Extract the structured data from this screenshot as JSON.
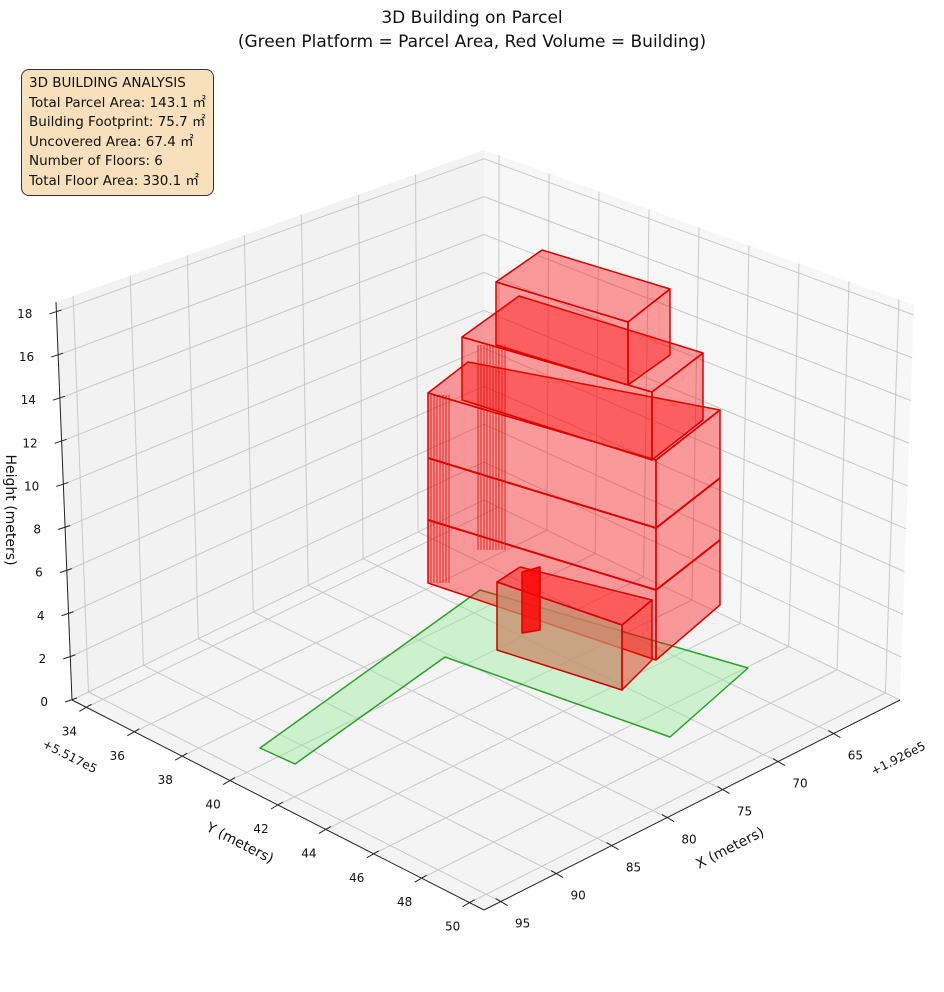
{
  "chart_data": {
    "type": "3d-polygons",
    "title": "3D Building on Parcel",
    "subtitle": "(Green Platform = Parcel Area, Red Volume = Building)",
    "xlabel": "X (meters)",
    "ylabel": "Y (meters)",
    "zlabel": "Height (meters)",
    "x_offset_label": "+1.926e5",
    "y_offset_label": "+5.517e5",
    "x_ticks": [
      "65",
      "70",
      "75",
      "80",
      "85",
      "90",
      "95"
    ],
    "y_ticks": [
      "34",
      "36",
      "38",
      "40",
      "42",
      "44",
      "46",
      "48",
      "50"
    ],
    "z_ticks": [
      "0",
      "2",
      "4",
      "6",
      "8",
      "10",
      "12",
      "14",
      "16",
      "18"
    ],
    "zlim": [
      0,
      18
    ],
    "series": [
      {
        "name": "Parcel Area",
        "color": "#90ee90",
        "edge": "#2ca02c"
      },
      {
        "name": "Building",
        "color": "#ff0000",
        "edge": "#cc0000",
        "floors": 6
      }
    ]
  },
  "info_box": {
    "heading": "3D BUILDING ANALYSIS",
    "lines": [
      "Total Parcel Area: 143.1 ㎡",
      "Building Footprint: 75.7 ㎡",
      "Uncovered Area: 67.4 ㎡",
      "Number of Floors: 6",
      "Total Floor Area: 330.1 ㎡"
    ]
  }
}
